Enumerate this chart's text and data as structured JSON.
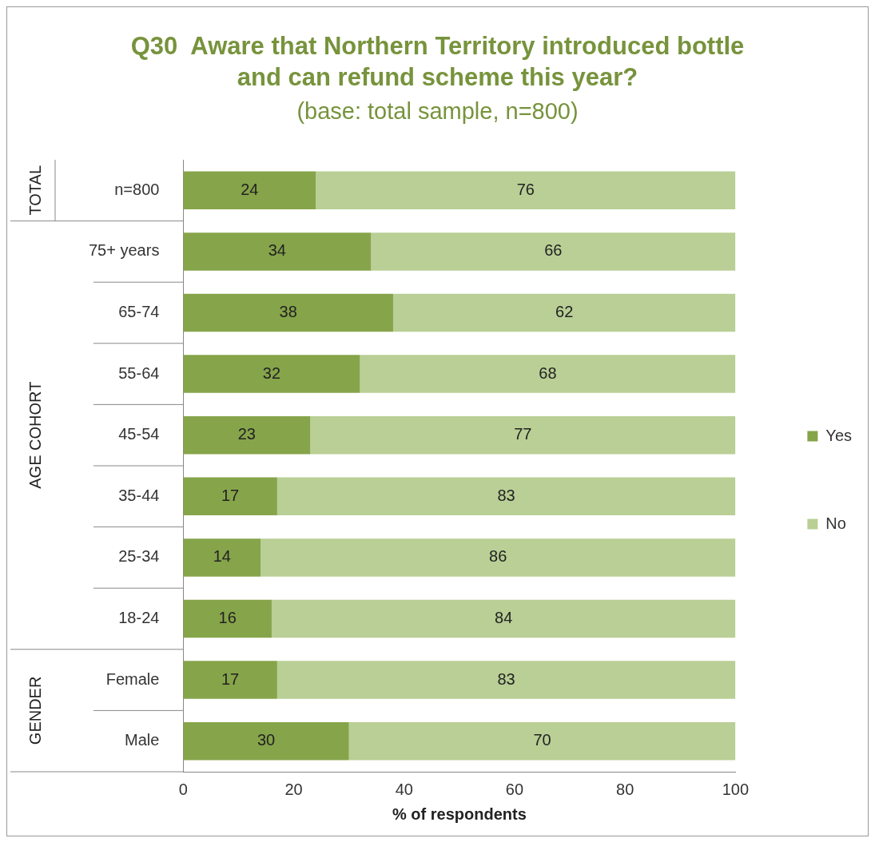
{
  "chart_data": {
    "type": "bar",
    "orientation": "horizontal",
    "stacked": true,
    "title": "Q30  Aware that Northern Territory introduced bottle and can refund scheme this year?",
    "subtitle": "(base: total sample, n=800)",
    "xlabel": "% of respondents",
    "categories": [
      "n=800",
      "75+ years",
      "65-74",
      "55-64",
      "45-54",
      "35-44",
      "25-34",
      "18-24",
      "Female",
      "Male"
    ],
    "series": [
      {
        "name": "Yes",
        "color": "#86a44a",
        "values": [
          24,
          34,
          38,
          32,
          23,
          17,
          14,
          16,
          17,
          30
        ]
      },
      {
        "name": "No",
        "color": "#b9cf95",
        "values": [
          76,
          66,
          62,
          68,
          77,
          83,
          86,
          84,
          83,
          70
        ]
      }
    ],
    "xlim": [
      0,
      100
    ],
    "xticks": [
      0,
      20,
      40,
      60,
      80,
      100
    ],
    "grid": false,
    "legend": "right",
    "data_labels": true,
    "annotations": [
      "TOTAL",
      "AGE COHORT",
      "GENDER"
    ]
  }
}
